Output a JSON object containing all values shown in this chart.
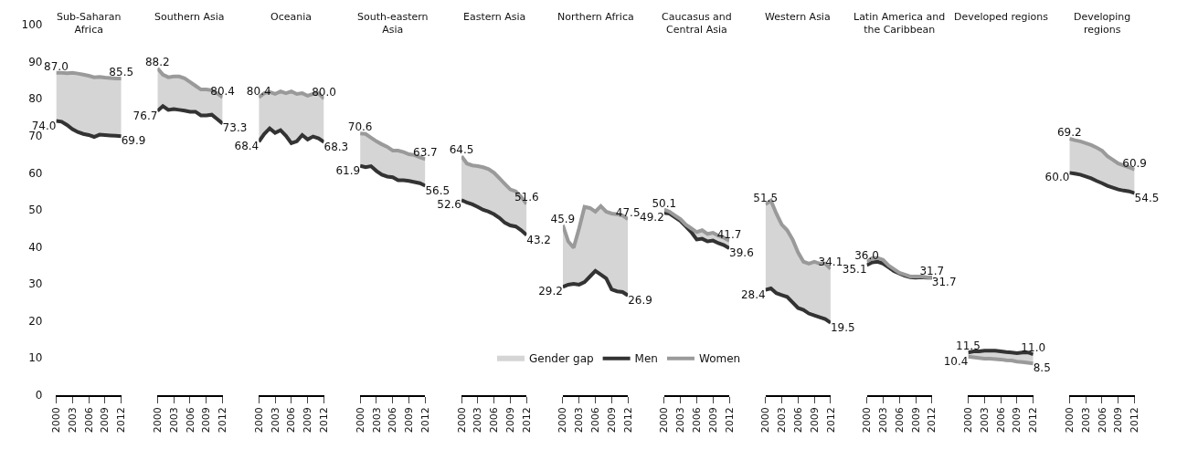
{
  "chart_data": [
    {
      "type": "line",
      "title": "Sub-Saharan Africa",
      "x": [
        2000,
        2001,
        2002,
        2003,
        2004,
        2005,
        2006,
        2007,
        2008,
        2009,
        2010,
        2011,
        2012
      ],
      "xlim": [
        2000,
        2012
      ],
      "xticks": [
        2000,
        2003,
        2006,
        2009,
        2012
      ],
      "ylim": [
        0,
        100
      ],
      "yticks": [
        0,
        10,
        20,
        30,
        40,
        50,
        60,
        70,
        80,
        90,
        100
      ],
      "series": [
        {
          "color": "#333333",
          "values": [
            74.0,
            73.8,
            72.9,
            71.8,
            71.0,
            70.5,
            70.2,
            69.7,
            70.3,
            70.2,
            70.1,
            70.0,
            69.9
          ],
          "value_labels": [
            "74.0",
            null,
            null,
            null,
            null,
            null,
            null,
            null,
            null,
            null,
            null,
            null,
            "69.9"
          ]
        },
        {
          "color": "#9a9a9a",
          "values": [
            87.0,
            87.0,
            86.9,
            87.0,
            86.8,
            86.5,
            86.2,
            85.8,
            85.9,
            85.7,
            85.6,
            85.5,
            85.5
          ],
          "value_labels": [
            "87.0",
            null,
            null,
            null,
            null,
            null,
            null,
            null,
            null,
            null,
            null,
            null,
            "85.5"
          ],
          "lower": [
            74.0,
            73.8,
            72.9,
            71.8,
            71.0,
            70.5,
            70.2,
            69.7,
            70.3,
            70.2,
            70.1,
            70.0,
            69.9
          ],
          "upper": [
            87.0,
            87.0,
            86.9,
            87.0,
            86.8,
            86.5,
            86.2,
            85.8,
            85.9,
            85.7,
            85.6,
            85.5,
            85.5
          ]
        }
      ]
    },
    {
      "type": "line",
      "title": "Southern Asia",
      "x": [
        2000,
        2001,
        2002,
        2003,
        2004,
        2005,
        2006,
        2007,
        2008,
        2009,
        2010,
        2011,
        2012
      ],
      "xlim": [
        2000,
        2012
      ],
      "xticks": [
        2000,
        2003,
        2006,
        2009,
        2012
      ],
      "ylim": [
        0,
        100
      ],
      "tick_labels": "x",
      "series": [
        {
          "color": "#333333",
          "values": [
            76.7,
            78.0,
            77.0,
            77.2,
            77.0,
            76.8,
            76.5,
            76.5,
            75.5,
            75.5,
            75.7,
            74.5,
            73.3
          ],
          "value_labels": [
            "76.7",
            null,
            null,
            null,
            null,
            null,
            null,
            null,
            null,
            null,
            null,
            null,
            "73.3"
          ]
        },
        {
          "color": "#9a9a9a",
          "values": [
            88.2,
            86.5,
            85.8,
            86.0,
            86.0,
            85.5,
            84.5,
            83.5,
            82.5,
            82.5,
            82.3,
            81.5,
            80.4
          ],
          "value_labels": [
            "88.2",
            null,
            null,
            null,
            null,
            null,
            null,
            null,
            null,
            null,
            null,
            null,
            "80.4"
          ],
          "lower": [
            76.7,
            78.0,
            77.0,
            77.2,
            77.0,
            76.8,
            76.5,
            76.5,
            75.5,
            75.5,
            75.7,
            74.5,
            73.3
          ],
          "upper": [
            88.2,
            86.5,
            85.8,
            86.0,
            86.0,
            85.5,
            84.5,
            83.5,
            82.5,
            82.5,
            82.3,
            81.5,
            80.4
          ]
        }
      ]
    },
    {
      "type": "line",
      "title": "Oceania",
      "x": [
        2000,
        2001,
        2002,
        2003,
        2004,
        2005,
        2006,
        2007,
        2008,
        2009,
        2010,
        2011,
        2012
      ],
      "xlim": [
        2000,
        2012
      ],
      "xticks": [
        2000,
        2003,
        2006,
        2009,
        2012
      ],
      "ylim": [
        0,
        100
      ],
      "tick_labels": "x",
      "series": [
        {
          "color": "#333333",
          "values": [
            68.4,
            70.5,
            72.0,
            70.8,
            71.5,
            70.0,
            68.0,
            68.5,
            70.2,
            69.0,
            69.8,
            69.3,
            68.3
          ],
          "value_labels": [
            "68.4",
            null,
            null,
            null,
            null,
            null,
            null,
            null,
            null,
            null,
            null,
            null,
            "68.3"
          ]
        },
        {
          "color": "#9a9a9a",
          "values": [
            80.4,
            81.5,
            81.8,
            81.3,
            82.0,
            81.5,
            82.0,
            81.3,
            81.5,
            80.8,
            81.3,
            81.5,
            80.0
          ],
          "value_labels": [
            "80.4",
            null,
            null,
            null,
            null,
            null,
            null,
            null,
            null,
            null,
            null,
            null,
            "80.0"
          ],
          "lower": [
            68.4,
            70.5,
            72.0,
            70.8,
            71.5,
            70.0,
            68.0,
            68.5,
            70.2,
            69.0,
            69.8,
            69.3,
            68.3
          ],
          "upper": [
            80.4,
            81.5,
            81.8,
            81.3,
            82.0,
            81.5,
            82.0,
            81.3,
            81.5,
            80.8,
            81.3,
            81.5,
            80.0
          ]
        }
      ]
    },
    {
      "type": "line",
      "title": "South-eastern Asia",
      "x": [
        2000,
        2001,
        2002,
        2003,
        2004,
        2005,
        2006,
        2007,
        2008,
        2009,
        2010,
        2011,
        2012
      ],
      "xlim": [
        2000,
        2012
      ],
      "xticks": [
        2000,
        2003,
        2006,
        2009,
        2012
      ],
      "ylim": [
        0,
        100
      ],
      "tick_labels": "x",
      "series": [
        {
          "color": "#333333",
          "values": [
            61.9,
            61.5,
            61.8,
            60.5,
            59.5,
            59.0,
            58.8,
            58.0,
            58.0,
            57.8,
            57.5,
            57.2,
            56.5
          ],
          "value_labels": [
            "61.9",
            null,
            null,
            null,
            null,
            null,
            null,
            null,
            null,
            null,
            null,
            null,
            "56.5"
          ]
        },
        {
          "color": "#9a9a9a",
          "values": [
            70.6,
            70.5,
            69.5,
            68.5,
            67.7,
            67.0,
            66.0,
            66.0,
            65.6,
            65.0,
            64.8,
            64.2,
            63.7
          ],
          "value_labels": [
            "70.6",
            null,
            null,
            null,
            null,
            null,
            null,
            null,
            null,
            null,
            null,
            null,
            "63.7"
          ],
          "lower": [
            61.9,
            61.5,
            61.8,
            60.5,
            59.5,
            59.0,
            58.8,
            58.0,
            58.0,
            57.8,
            57.5,
            57.2,
            56.5
          ],
          "upper": [
            70.6,
            70.5,
            69.5,
            68.5,
            67.7,
            67.0,
            66.0,
            66.0,
            65.6,
            65.0,
            64.8,
            64.2,
            63.7
          ]
        }
      ]
    },
    {
      "type": "line",
      "title": "Eastern Asia",
      "x": [
        2000,
        2001,
        2002,
        2003,
        2004,
        2005,
        2006,
        2007,
        2008,
        2009,
        2010,
        2011,
        2012
      ],
      "xlim": [
        2000,
        2012
      ],
      "xticks": [
        2000,
        2003,
        2006,
        2009,
        2012
      ],
      "ylim": [
        0,
        100
      ],
      "tick_labels": "x",
      "series": [
        {
          "color": "#333333",
          "values": [
            52.6,
            52.0,
            51.5,
            50.8,
            50.0,
            49.5,
            48.8,
            47.8,
            46.5,
            45.8,
            45.5,
            44.5,
            43.2
          ],
          "value_labels": [
            "52.6",
            null,
            null,
            null,
            null,
            null,
            null,
            null,
            null,
            null,
            null,
            null,
            "43.2"
          ]
        },
        {
          "color": "#9a9a9a",
          "values": [
            64.5,
            62.5,
            62.0,
            61.8,
            61.5,
            61.0,
            60.0,
            58.5,
            57.0,
            55.5,
            55.0,
            53.5,
            51.6
          ],
          "value_labels": [
            "64.5",
            null,
            null,
            null,
            null,
            null,
            null,
            null,
            null,
            null,
            null,
            null,
            "51.6"
          ],
          "lower": [
            52.6,
            52.0,
            51.5,
            50.8,
            50.0,
            49.5,
            48.8,
            47.8,
            46.5,
            45.8,
            45.5,
            44.5,
            43.2
          ],
          "upper": [
            64.5,
            62.5,
            62.0,
            61.8,
            61.5,
            61.0,
            60.0,
            58.5,
            57.0,
            55.5,
            55.0,
            53.5,
            51.6
          ]
        }
      ]
    },
    {
      "type": "line",
      "title": "Northern Africa",
      "x": [
        2000,
        2001,
        2002,
        2003,
        2004,
        2005,
        2006,
        2007,
        2008,
        2009,
        2010,
        2011,
        2012
      ],
      "xlim": [
        2000,
        2012
      ],
      "xticks": [
        2000,
        2003,
        2006,
        2009,
        2012
      ],
      "ylim": [
        0,
        100
      ],
      "tick_labels": "x",
      "legend": "bottom",
      "annotations": [
        "Gender gap"
      ],
      "series": [
        {
          "name": "Men",
          "color": "#333333",
          "values": [
            29.2,
            29.8,
            30.0,
            29.8,
            30.5,
            32.0,
            33.5,
            32.5,
            31.5,
            28.5,
            28.0,
            27.8,
            26.9
          ],
          "value_labels": [
            "29.2",
            null,
            null,
            null,
            null,
            null,
            null,
            null,
            null,
            null,
            null,
            null,
            "26.9"
          ]
        },
        {
          "name": "Women",
          "color": "#9a9a9a",
          "values": [
            45.9,
            41.5,
            39.8,
            45.0,
            50.8,
            50.5,
            49.5,
            51.0,
            49.5,
            49.0,
            48.8,
            48.5,
            47.5
          ],
          "value_labels": [
            "45.9",
            null,
            null,
            null,
            null,
            null,
            null,
            null,
            null,
            null,
            null,
            null,
            "47.5"
          ],
          "lower": [
            29.2,
            29.8,
            30.0,
            29.8,
            30.5,
            32.0,
            33.5,
            32.5,
            31.5,
            28.5,
            28.0,
            27.8,
            26.9
          ],
          "upper": [
            45.9,
            41.5,
            39.8,
            45.0,
            50.8,
            50.5,
            49.5,
            51.0,
            49.5,
            49.0,
            48.8,
            48.5,
            47.5
          ]
        }
      ]
    },
    {
      "type": "line",
      "title": "Caucasus and Central Asia",
      "x": [
        2000,
        2001,
        2002,
        2003,
        2004,
        2005,
        2006,
        2007,
        2008,
        2009,
        2010,
        2011,
        2012
      ],
      "xlim": [
        2000,
        2012
      ],
      "xticks": [
        2000,
        2003,
        2006,
        2009,
        2012
      ],
      "ylim": [
        0,
        100
      ],
      "tick_labels": "x",
      "series": [
        {
          "color": "#333333",
          "values": [
            49.2,
            49.0,
            48.0,
            47.0,
            45.5,
            44.0,
            42.0,
            42.2,
            41.5,
            41.7,
            41.0,
            40.5,
            39.6
          ],
          "value_labels": [
            "49.2",
            null,
            null,
            null,
            null,
            null,
            null,
            null,
            null,
            null,
            null,
            null,
            "39.6"
          ]
        },
        {
          "color": "#9a9a9a",
          "values": [
            50.1,
            49.5,
            48.5,
            47.5,
            46.0,
            45.0,
            44.0,
            44.5,
            43.5,
            43.8,
            43.0,
            42.5,
            41.7
          ],
          "value_labels": [
            "50.1",
            null,
            null,
            null,
            null,
            null,
            null,
            null,
            null,
            null,
            null,
            null,
            "41.7"
          ],
          "lower": [
            49.2,
            49.0,
            48.0,
            47.0,
            45.5,
            44.0,
            42.0,
            42.2,
            41.5,
            41.7,
            41.0,
            40.5,
            39.6
          ],
          "upper": [
            50.1,
            49.5,
            48.5,
            47.5,
            46.0,
            45.0,
            44.0,
            44.5,
            43.5,
            43.8,
            43.0,
            42.5,
            41.7
          ]
        }
      ]
    },
    {
      "type": "line",
      "title": "Western Asia",
      "x": [
        2000,
        2001,
        2002,
        2003,
        2004,
        2005,
        2006,
        2007,
        2008,
        2009,
        2010,
        2011,
        2012
      ],
      "xlim": [
        2000,
        2012
      ],
      "xticks": [
        2000,
        2003,
        2006,
        2009,
        2012
      ],
      "ylim": [
        0,
        100
      ],
      "tick_labels": "x",
      "series": [
        {
          "color": "#333333",
          "values": [
            28.4,
            28.8,
            27.5,
            27.0,
            26.5,
            25.0,
            23.5,
            23.0,
            22.0,
            21.5,
            21.0,
            20.5,
            19.5
          ],
          "value_labels": [
            "28.4",
            null,
            null,
            null,
            null,
            null,
            null,
            null,
            null,
            null,
            null,
            null,
            "19.5"
          ]
        },
        {
          "color": "#9a9a9a",
          "values": [
            51.5,
            52.5,
            49.0,
            46.0,
            44.5,
            42.0,
            38.5,
            36.0,
            35.5,
            36.0,
            35.5,
            35.5,
            34.1
          ],
          "value_labels": [
            "51.5",
            null,
            null,
            null,
            null,
            null,
            null,
            null,
            null,
            null,
            null,
            null,
            "34.1"
          ],
          "lower": [
            28.4,
            28.8,
            27.5,
            27.0,
            26.5,
            25.0,
            23.5,
            23.0,
            22.0,
            21.5,
            21.0,
            20.5,
            19.5
          ],
          "upper": [
            51.5,
            52.5,
            49.0,
            46.0,
            44.5,
            42.0,
            38.5,
            36.0,
            35.5,
            36.0,
            35.5,
            35.5,
            34.1
          ]
        }
      ]
    },
    {
      "type": "line",
      "title": "Latin America and the Caribbean",
      "x": [
        2000,
        2001,
        2002,
        2003,
        2004,
        2005,
        2006,
        2007,
        2008,
        2009,
        2010,
        2011,
        2012
      ],
      "xlim": [
        2000,
        2012
      ],
      "xticks": [
        2000,
        2003,
        2006,
        2009,
        2012
      ],
      "ylim": [
        0,
        100
      ],
      "tick_labels": "x",
      "series": [
        {
          "color": "#333333",
          "values": [
            35.1,
            35.8,
            36.0,
            35.5,
            34.5,
            33.5,
            32.8,
            32.2,
            31.8,
            31.7,
            31.8,
            31.7,
            31.7
          ],
          "value_labels": [
            "35.1",
            null,
            null,
            null,
            null,
            null,
            null,
            null,
            null,
            null,
            null,
            null,
            "31.7"
          ]
        },
        {
          "color": "#9a9a9a",
          "values": [
            36.0,
            37.0,
            37.0,
            36.5,
            35.0,
            34.0,
            33.0,
            32.5,
            32.0,
            32.0,
            32.0,
            31.8,
            31.7
          ],
          "value_labels": [
            "36.0",
            null,
            null,
            null,
            null,
            null,
            null,
            null,
            null,
            null,
            null,
            null,
            "31.7"
          ],
          "lower": [
            35.1,
            35.8,
            36.0,
            35.5,
            34.5,
            33.5,
            32.8,
            32.2,
            31.8,
            31.7,
            31.8,
            31.7,
            31.7
          ],
          "upper": [
            36.0,
            37.0,
            37.0,
            36.5,
            35.0,
            34.0,
            33.0,
            32.5,
            32.0,
            32.0,
            32.0,
            31.8,
            31.7
          ]
        }
      ]
    },
    {
      "type": "line",
      "title": "Developed regions",
      "x": [
        2000,
        2001,
        2002,
        2003,
        2004,
        2005,
        2006,
        2007,
        2008,
        2009,
        2010,
        2011,
        2012
      ],
      "xlim": [
        2000,
        2012
      ],
      "xticks": [
        2000,
        2003,
        2006,
        2009,
        2012
      ],
      "ylim": [
        0,
        100
      ],
      "tick_labels": "x",
      "series": [
        {
          "color": "#333333",
          "values": [
            11.5,
            11.8,
            11.8,
            12.0,
            12.0,
            12.0,
            11.8,
            11.6,
            11.5,
            11.3,
            11.5,
            11.5,
            11.0
          ],
          "value_labels": [
            "11.5",
            null,
            null,
            null,
            null,
            null,
            null,
            null,
            null,
            null,
            null,
            null,
            "11.0"
          ]
        },
        {
          "color": "#9a9a9a",
          "values": [
            10.4,
            10.2,
            10.0,
            9.8,
            9.8,
            9.7,
            9.6,
            9.4,
            9.3,
            9.0,
            8.9,
            8.7,
            8.5
          ],
          "value_labels": [
            "10.4",
            null,
            null,
            null,
            null,
            null,
            null,
            null,
            null,
            null,
            null,
            null,
            "8.5"
          ],
          "lower": [
            10.4,
            10.2,
            10.0,
            9.8,
            9.8,
            9.7,
            9.6,
            9.4,
            9.3,
            9.0,
            8.9,
            8.7,
            8.5
          ],
          "upper": [
            11.5,
            11.8,
            11.8,
            12.0,
            12.0,
            12.0,
            11.8,
            11.6,
            11.5,
            11.3,
            11.5,
            11.5,
            11.0
          ]
        }
      ]
    },
    {
      "type": "line",
      "title": "Developing regions",
      "x": [
        2000,
        2001,
        2002,
        2003,
        2004,
        2005,
        2006,
        2007,
        2008,
        2009,
        2010,
        2011,
        2012
      ],
      "xlim": [
        2000,
        2012
      ],
      "xticks": [
        2000,
        2003,
        2006,
        2009,
        2012
      ],
      "ylim": [
        0,
        100
      ],
      "tick_labels": "x",
      "series": [
        {
          "color": "#333333",
          "values": [
            60.0,
            59.8,
            59.5,
            59.0,
            58.5,
            57.8,
            57.2,
            56.5,
            56.0,
            55.5,
            55.2,
            55.0,
            54.5
          ],
          "value_labels": [
            "60.0",
            null,
            null,
            null,
            null,
            null,
            null,
            null,
            null,
            null,
            null,
            null,
            "54.5"
          ]
        },
        {
          "color": "#9a9a9a",
          "values": [
            69.2,
            68.8,
            68.5,
            68.0,
            67.5,
            66.8,
            66.0,
            64.5,
            63.5,
            62.5,
            62.0,
            61.5,
            60.9
          ],
          "value_labels": [
            "69.2",
            null,
            null,
            null,
            null,
            null,
            null,
            null,
            null,
            null,
            null,
            null,
            "60.9"
          ],
          "lower": [
            60.0,
            59.8,
            59.5,
            59.0,
            58.5,
            57.8,
            57.2,
            56.5,
            56.0,
            55.5,
            55.2,
            55.0,
            54.5
          ],
          "upper": [
            69.2,
            68.8,
            68.5,
            68.0,
            67.5,
            66.8,
            66.0,
            64.5,
            63.5,
            62.5,
            62.0,
            61.5,
            60.9
          ]
        }
      ]
    }
  ]
}
